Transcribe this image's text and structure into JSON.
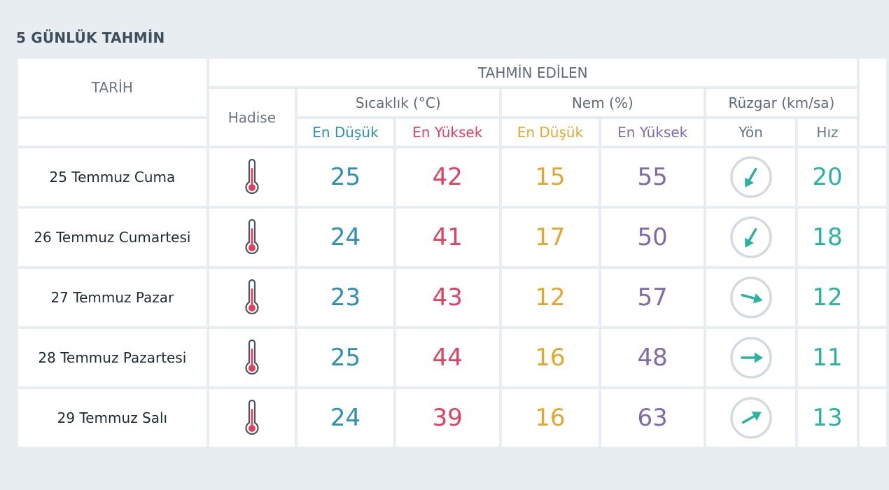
{
  "section_title": "5 GÜNLÜK TAHMİN",
  "headers": {
    "tarih": "TARİH",
    "tahmin_edilen": "TAHMİN EDİLEN",
    "hadise": "Hadise",
    "sicaklik": "Sıcaklık (°C)",
    "nem": "Nem (%)",
    "ruzgar": "Rüzgar (km/sa)",
    "temp_min": "En Düşük",
    "temp_max": "En Yüksek",
    "hum_min": "En Düşük",
    "hum_max": "En Yüksek",
    "wind_dir": "Yön",
    "wind_speed": "Hız"
  },
  "colors": {
    "temp_min": "#2f8fb4",
    "temp_max": "#e0415f",
    "hum_min": "#e3a72f",
    "hum_max": "#7f6aae",
    "wind_speed": "#2bb3a0",
    "arrow": "#2bb3a0",
    "thermometer": "#e0415f"
  },
  "icons": {
    "hadise": "thermometer-icon",
    "wind": "wind-direction-icon"
  },
  "rows": [
    {
      "date": "25 Temmuz Cuma",
      "temp_min": "25",
      "temp_max": "42",
      "hum_min": "15",
      "hum_max": "55",
      "wind_dir_deg": 210,
      "wind_speed": "20"
    },
    {
      "date": "26 Temmuz Cumartesi",
      "temp_min": "24",
      "temp_max": "41",
      "hum_min": "17",
      "hum_max": "50",
      "wind_dir_deg": 210,
      "wind_speed": "18"
    },
    {
      "date": "27 Temmuz Pazar",
      "temp_min": "23",
      "temp_max": "43",
      "hum_min": "12",
      "hum_max": "57",
      "wind_dir_deg": 105,
      "wind_speed": "12"
    },
    {
      "date": "28 Temmuz Pazartesi",
      "temp_min": "25",
      "temp_max": "44",
      "hum_min": "16",
      "hum_max": "48",
      "wind_dir_deg": 90,
      "wind_speed": "11"
    },
    {
      "date": "29 Temmuz Salı",
      "temp_min": "24",
      "temp_max": "39",
      "hum_min": "16",
      "hum_max": "63",
      "wind_dir_deg": 60,
      "wind_speed": "13"
    }
  ]
}
